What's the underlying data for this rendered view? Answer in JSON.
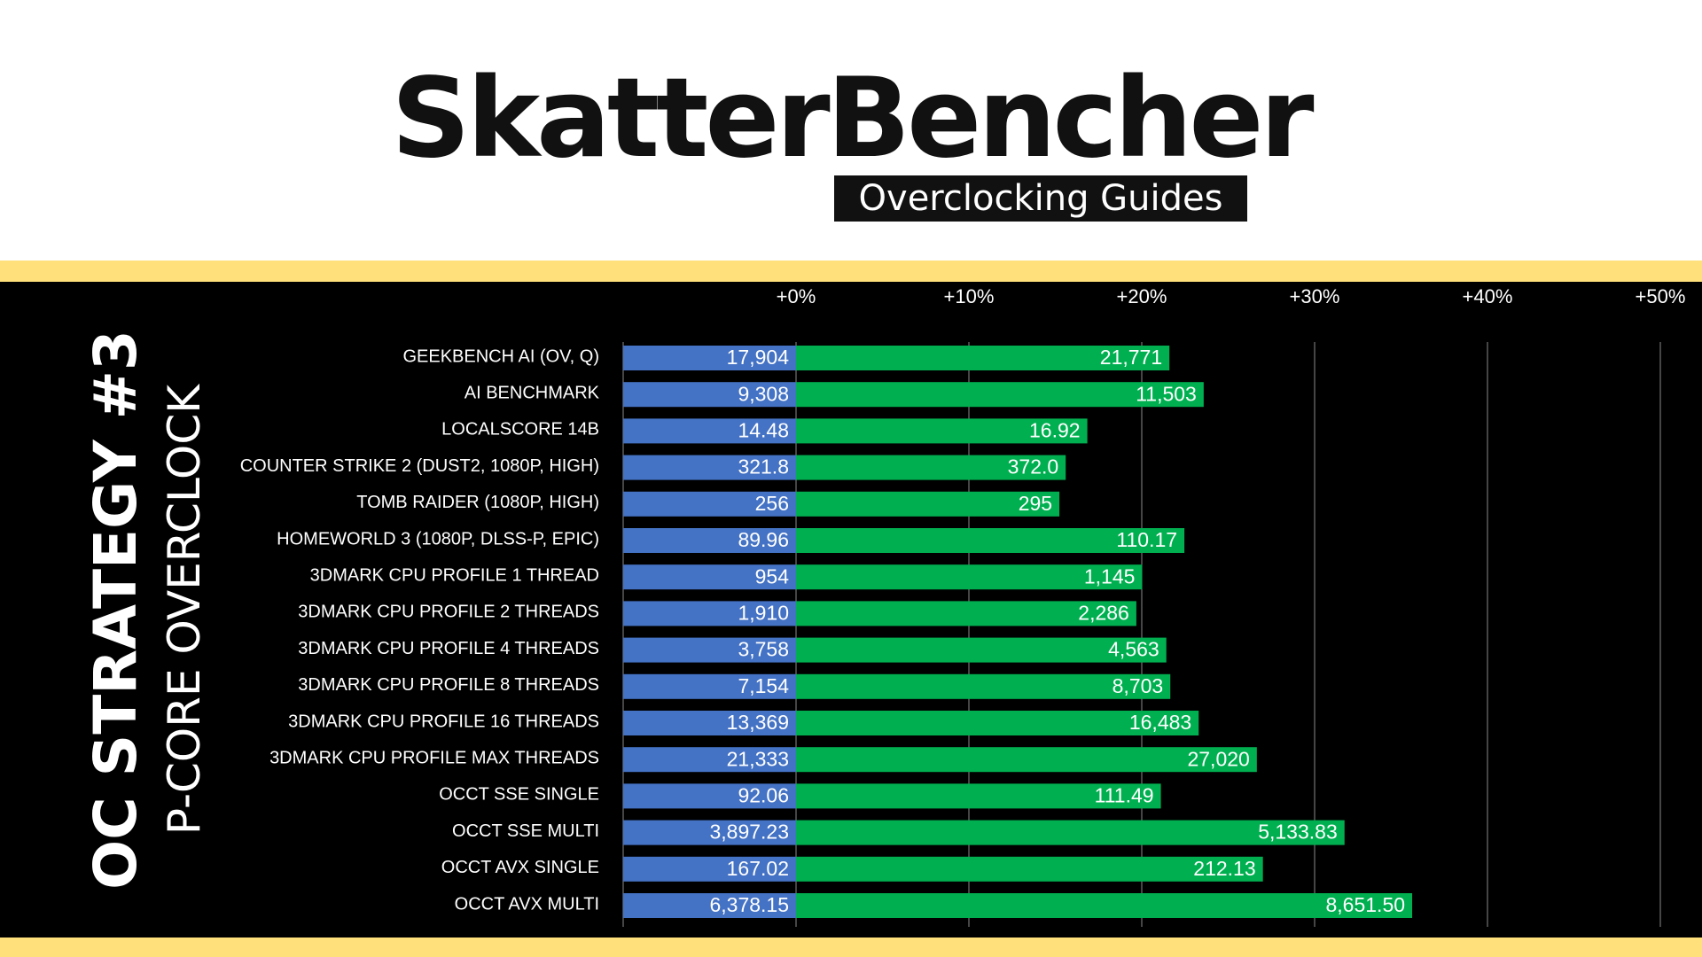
{
  "brand": {
    "title": "SkatterBencher",
    "subtitle": "Overclocking Guides"
  },
  "sidebar": {
    "title": "OC STRATEGY #3",
    "subtitle": "P-CORE OVERCLOCK"
  },
  "colors": {
    "baseline": "#4472c4",
    "overclock": "#00b050",
    "band": "#ffe07a",
    "panel": "#000000"
  },
  "chart_data": {
    "type": "bar",
    "orientation": "horizontal",
    "title": "",
    "xlabel": "",
    "ylabel": "",
    "x_ticks": [
      "+0%",
      "+10%",
      "+20%",
      "+30%",
      "+40%",
      "+50%"
    ],
    "xlim": [
      -10,
      52
    ],
    "grid": true,
    "categories": [
      "GEEKBENCH AI (OV, Q)",
      "AI BENCHMARK",
      "LOCALSCORE 14B",
      "COUNTER STRIKE 2 (DUST2, 1080P, HIGH)",
      "TOMB RAIDER (1080P, HIGH)",
      "HOMEWORLD 3 (1080P, DLSS-P, EPIC)",
      "3DMARK CPU PROFILE 1 THREAD",
      "3DMARK CPU PROFILE 2 THREADS",
      "3DMARK CPU PROFILE 4 THREADS",
      "3DMARK CPU PROFILE 8 THREADS",
      "3DMARK CPU PROFILE 16 THREADS",
      "3DMARK CPU PROFILE MAX THREADS",
      "OCCT SSE SINGLE",
      "OCCT SSE MULTI",
      "OCCT AVX SINGLE",
      "OCCT AVX MULTI"
    ],
    "series": [
      {
        "values": [
          17904,
          9308,
          14.48,
          321.8,
          256,
          89.96,
          954,
          1910,
          3758,
          7154,
          13369,
          21333,
          92.06,
          3897.23,
          167.02,
          6378.15
        ],
        "labels": [
          "17,904",
          "9,308",
          "14.48",
          "321.8",
          "256",
          "89.96",
          "954",
          "1,910",
          "3,758",
          "7,154",
          "13,369",
          "21,333",
          "92.06",
          "3,897.23",
          "167.02",
          "6,378.15"
        ]
      },
      {
        "values": [
          21771,
          11503,
          16.92,
          372.0,
          295,
          110.17,
          1145,
          2286,
          4563,
          8703,
          16483,
          27020,
          111.49,
          5133.83,
          212.13,
          8651.5
        ],
        "labels": [
          "21,771",
          "11,503",
          "16.92",
          "372.0",
          "295",
          "110.17",
          "1,145",
          "2,286",
          "4,563",
          "8,703",
          "16,483",
          "27,020",
          "111.49",
          "5,133.83",
          "212.13",
          "8,651.50"
        ]
      }
    ]
  }
}
